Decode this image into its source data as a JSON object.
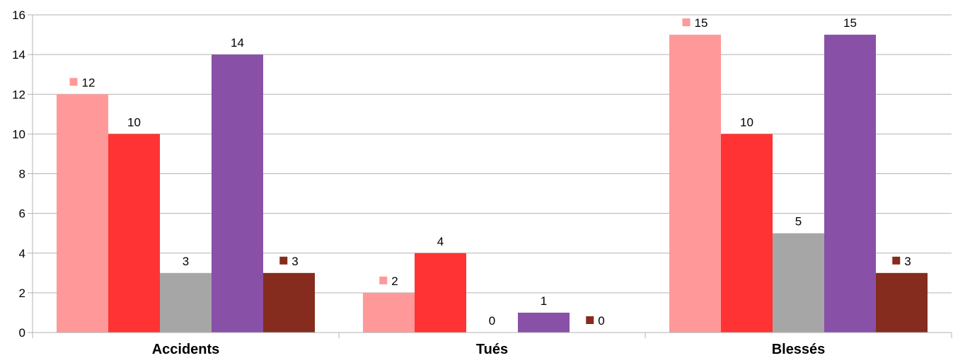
{
  "chart_data": {
    "type": "bar",
    "categories": [
      "Accidents",
      "Tués",
      "Blessés"
    ],
    "series": [
      {
        "color": "#ff9999",
        "values": [
          12,
          2,
          15
        ],
        "label_key": [
          true,
          true,
          true
        ]
      },
      {
        "color": "#ff3333",
        "values": [
          10,
          4,
          10
        ],
        "label_key": [
          false,
          false,
          false
        ]
      },
      {
        "color": "#a6a6a6",
        "values": [
          3,
          0,
          5
        ],
        "label_key": [
          false,
          false,
          false
        ]
      },
      {
        "color": "#8950a8",
        "values": [
          14,
          1,
          15
        ],
        "label_key": [
          false,
          false,
          false
        ]
      },
      {
        "color": "#852c1e",
        "values": [
          3,
          0,
          3
        ],
        "label_key": [
          true,
          true,
          true
        ]
      }
    ],
    "ylim": [
      0,
      16
    ],
    "yticks": [
      0,
      2,
      4,
      6,
      8,
      10,
      12,
      14,
      16
    ],
    "grid": true,
    "title": "",
    "xlabel": "",
    "ylabel": ""
  }
}
